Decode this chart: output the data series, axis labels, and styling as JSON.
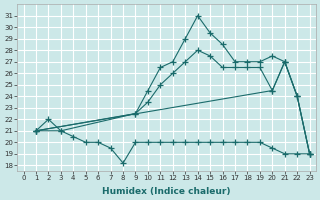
{
  "xlabel": "Humidex (Indice chaleur)",
  "xlim": [
    -0.5,
    23.5
  ],
  "ylim": [
    17.5,
    32
  ],
  "xticks": [
    0,
    1,
    2,
    3,
    4,
    5,
    6,
    7,
    8,
    9,
    10,
    11,
    12,
    13,
    14,
    15,
    16,
    17,
    18,
    19,
    20,
    21,
    22,
    23
  ],
  "yticks": [
    18,
    19,
    20,
    21,
    22,
    23,
    24,
    25,
    26,
    27,
    28,
    29,
    30,
    31
  ],
  "bg_color": "#cce8e8",
  "grid_color": "#ffffff",
  "line_color": "#1a6b6b",
  "series": [
    {
      "x": [
        1,
        3,
        9,
        10,
        11,
        12,
        13,
        14,
        15,
        16,
        17,
        18,
        19,
        20,
        21,
        22,
        23
      ],
      "y": [
        21.0,
        21.0,
        22.5,
        24.5,
        26.5,
        27.0,
        29.0,
        31.0,
        29.5,
        28.5,
        27.0,
        27.0,
        27.0,
        27.5,
        27.0,
        24.0,
        19.0
      ]
    },
    {
      "x": [
        1,
        20,
        21,
        22,
        23
      ],
      "y": [
        21.0,
        24.5,
        27.0,
        24.0,
        19.0
      ]
    },
    {
      "x": [
        1,
        9,
        10,
        11,
        12,
        13,
        14,
        15,
        16,
        17,
        18,
        19,
        20,
        21,
        22,
        23
      ],
      "y": [
        21.0,
        22.5,
        23.5,
        25.0,
        26.0,
        27.0,
        28.0,
        27.5,
        26.5,
        26.5,
        26.5,
        26.5,
        24.5,
        27.0,
        24.0,
        19.0
      ]
    },
    {
      "x": [
        1,
        2,
        3,
        4,
        5,
        6,
        7,
        8,
        9,
        10,
        11,
        12,
        13,
        14,
        15,
        16,
        17,
        18,
        19,
        20,
        21,
        22,
        23
      ],
      "y": [
        21.0,
        22.0,
        21.0,
        20.5,
        20.0,
        20.0,
        19.5,
        18.2,
        20.0,
        20.0,
        20.0,
        20.0,
        20.0,
        20.0,
        20.0,
        20.0,
        20.0,
        20.0,
        20.0,
        19.5,
        19.0,
        19.0,
        19.0
      ]
    }
  ]
}
